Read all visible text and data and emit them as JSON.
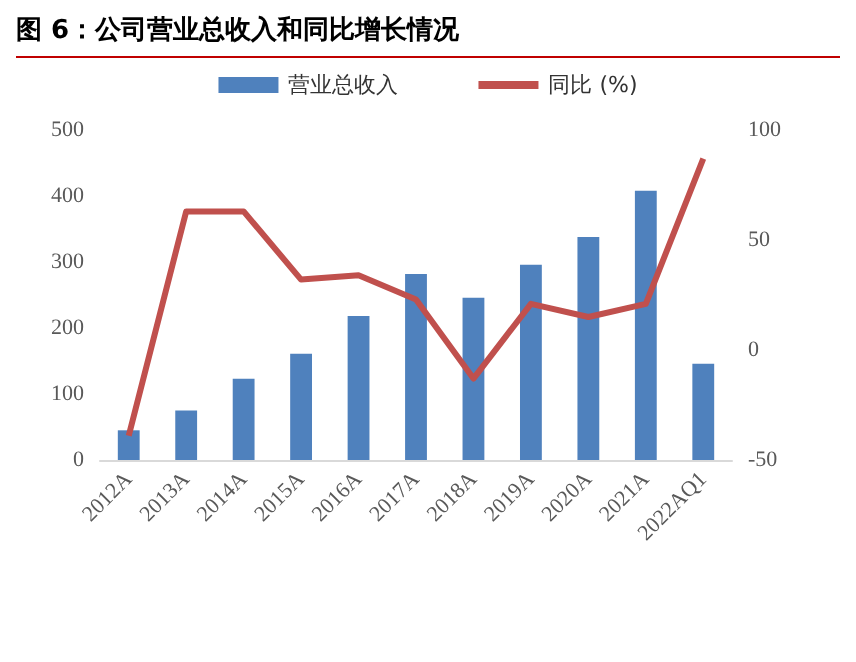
{
  "chart_data": {
    "type": "bar",
    "title": "图 6：公司营业总收入和同比增长情况",
    "categories": [
      "2012A",
      "2013A",
      "2014A",
      "2015A",
      "2016A",
      "2017A",
      "2018A",
      "2019A",
      "2020A",
      "2021A",
      "2022AQ1"
    ],
    "series": [
      {
        "name": "营业总收入",
        "color": "#4f81bd",
        "values": [
          45,
          75,
          123,
          161,
          218,
          282,
          246,
          296,
          338,
          408,
          146
        ]
      },
      {
        "name": "同比 (%)",
        "type": "line",
        "axis": "y2",
        "color": "#c0504d",
        "values": [
          -39,
          63,
          63,
          32,
          34,
          23,
          -13,
          21,
          15,
          21,
          87
        ]
      }
    ],
    "ylim": [
      0,
      500
    ],
    "yticks": [
      0,
      100,
      200,
      300,
      400,
      500
    ],
    "y2lim": [
      -50,
      100
    ],
    "y2ticks": [
      -50,
      0,
      50,
      100
    ],
    "grid": false,
    "legend": "top",
    "marker": "none"
  }
}
